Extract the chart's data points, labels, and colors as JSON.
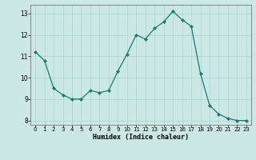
{
  "x": [
    0,
    1,
    2,
    3,
    4,
    5,
    6,
    7,
    8,
    9,
    10,
    11,
    12,
    13,
    14,
    15,
    16,
    17,
    18,
    19,
    20,
    21,
    22,
    23
  ],
  "y": [
    11.2,
    10.8,
    9.5,
    9.2,
    9.0,
    9.0,
    9.4,
    9.3,
    9.4,
    10.3,
    11.1,
    12.0,
    11.8,
    12.3,
    12.6,
    13.1,
    12.7,
    12.4,
    10.2,
    8.7,
    8.3,
    8.1,
    8.0,
    8.0
  ],
  "xlabel": "Humidex (Indice chaleur)",
  "xlim": [
    -0.5,
    23.5
  ],
  "ylim": [
    7.8,
    13.4
  ],
  "yticks": [
    8,
    9,
    10,
    11,
    12,
    13
  ],
  "xticks": [
    0,
    1,
    2,
    3,
    4,
    5,
    6,
    7,
    8,
    9,
    10,
    11,
    12,
    13,
    14,
    15,
    16,
    17,
    18,
    19,
    20,
    21,
    22,
    23
  ],
  "line_color": "#1a7a6e",
  "marker_color": "#1a7a6e",
  "bg_color": "#cce8e4",
  "grid_color": "#b0d8d2",
  "axes_bg": "#cce8e4"
}
